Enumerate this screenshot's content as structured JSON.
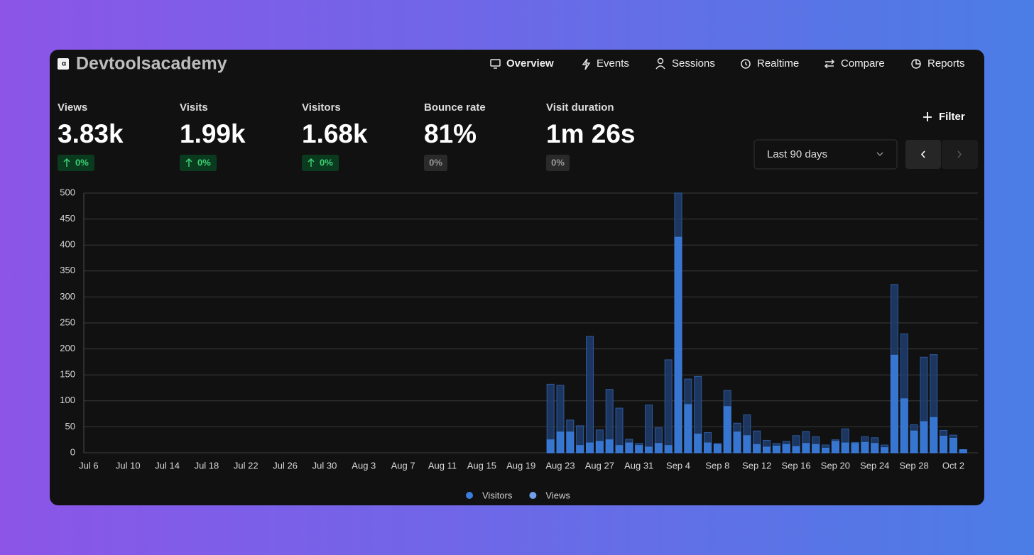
{
  "header": {
    "title": "Devtoolsacademy"
  },
  "nav": [
    {
      "label": "Overview",
      "active": true
    },
    {
      "label": "Events"
    },
    {
      "label": "Sessions"
    },
    {
      "label": "Realtime"
    },
    {
      "label": "Compare"
    },
    {
      "label": "Reports"
    }
  ],
  "metrics": [
    {
      "label": "Views",
      "value": "3.83k",
      "change": "0%",
      "trend": "up"
    },
    {
      "label": "Visits",
      "value": "1.99k",
      "change": "0%",
      "trend": "up"
    },
    {
      "label": "Visitors",
      "value": "1.68k",
      "change": "0%",
      "trend": "up"
    },
    {
      "label": "Bounce rate",
      "value": "81%",
      "change": "0%"
    },
    {
      "label": "Visit duration",
      "value": "1m 26s",
      "change": "0%"
    }
  ],
  "filter": "Filter",
  "date_range": "Last 90 days",
  "chart_data": {
    "type": "bar",
    "stacked": false,
    "grid": true,
    "legend": "bottom",
    "categories": [
      "Jul 6",
      null,
      null,
      null,
      "Jul 10",
      null,
      null,
      null,
      "Jul 14",
      null,
      null,
      null,
      "Jul 18",
      null,
      null,
      null,
      "Jul 22",
      null,
      null,
      null,
      "Jul 26",
      null,
      null,
      null,
      "Jul 30",
      null,
      null,
      null,
      "Aug 3",
      null,
      null,
      null,
      "Aug 7",
      null,
      null,
      null,
      "Aug 11",
      null,
      null,
      null,
      "Aug 15",
      null,
      null,
      null,
      "Aug 19",
      null,
      null,
      null,
      "Aug 23",
      null,
      null,
      null,
      "Aug 27",
      null,
      null,
      null,
      "Aug 31",
      null,
      null,
      null,
      "Sep 4",
      null,
      null,
      null,
      "Sep 8",
      null,
      null,
      null,
      "Sep 12",
      null,
      null,
      null,
      "Sep 16",
      null,
      null,
      null,
      "Sep 20",
      null,
      null,
      null,
      "Sep 24",
      null,
      null,
      null,
      "Sep 28",
      null,
      null,
      null,
      "Oct 2",
      null,
      null
    ],
    "series": [
      {
        "name": "Visitors",
        "color": "#3b7ddd",
        "values": [
          0,
          0,
          0,
          0,
          0,
          0,
          0,
          0,
          0,
          0,
          0,
          0,
          0,
          0,
          0,
          0,
          0,
          0,
          0,
          0,
          0,
          0,
          0,
          0,
          0,
          0,
          0,
          0,
          0,
          0,
          0,
          0,
          0,
          0,
          0,
          0,
          0,
          0,
          0,
          0,
          0,
          0,
          0,
          0,
          0,
          0,
          0,
          25,
          40,
          40,
          14,
          19,
          22,
          25,
          14,
          19,
          14,
          11,
          18,
          14,
          415,
          93,
          36,
          19,
          16,
          89,
          40,
          33,
          16,
          11,
          13,
          16,
          12,
          18,
          16,
          9,
          22,
          19,
          18,
          20,
          18,
          10,
          188,
          104,
          42,
          60,
          68,
          32,
          28,
          6,
          0
        ]
      },
      {
        "name": "Views",
        "color": "#6f9fe8",
        "values": [
          0,
          0,
          0,
          0,
          0,
          0,
          0,
          0,
          0,
          0,
          0,
          0,
          0,
          0,
          0,
          0,
          0,
          0,
          0,
          0,
          0,
          0,
          0,
          0,
          0,
          0,
          0,
          0,
          0,
          0,
          0,
          0,
          0,
          0,
          0,
          0,
          0,
          0,
          0,
          0,
          0,
          0,
          0,
          0,
          0,
          0,
          0,
          132,
          130,
          63,
          52,
          224,
          44,
          122,
          86,
          26,
          18,
          92,
          48,
          179,
          500,
          142,
          147,
          39,
          18,
          120,
          57,
          73,
          42,
          24,
          18,
          22,
          33,
          41,
          31,
          15,
          25,
          46,
          20,
          31,
          29,
          15,
          324,
          229,
          54,
          184,
          189,
          43,
          34,
          6,
          0
        ]
      }
    ],
    "ylim": [
      0,
      500
    ],
    "yticks": [
      0,
      50,
      100,
      150,
      200,
      250,
      300,
      350,
      400,
      450,
      500
    ]
  }
}
